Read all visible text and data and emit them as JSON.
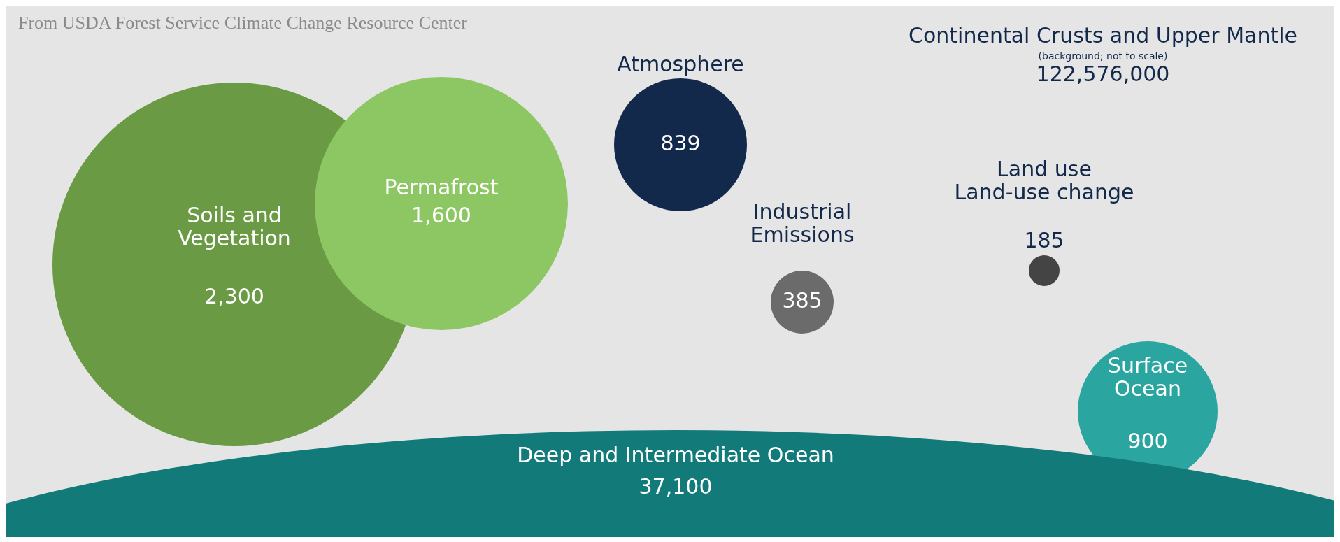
{
  "chart_data": {
    "type": "other",
    "categories": [
      "Soils and\nVegetation",
      "Permafrost",
      "Atmosphere",
      "Industrial\nEmissions",
      "Land use\nLand-use change",
      "Surface\nOcean",
      "Deep and Intermediate Ocean",
      "Continental Crusts and Upper Mantle"
    ],
    "values": [
      2300,
      1600,
      839,
      385,
      185,
      900,
      37100,
      122576000
    ],
    "value_labels": [
      "2,300",
      "1,600",
      "839",
      "385",
      "185",
      "900",
      "37,100",
      "122,576,000"
    ],
    "colors": [
      "#6a9a44",
      "#8cc763",
      "#13294b",
      "#6b6b6b",
      "#444444",
      "#2aa5a0",
      "#137a7a",
      null
    ],
    "annotations": [
      "From USDA Forest Service Climate Change Resource Center",
      "(background; not to scale)"
    ]
  }
}
